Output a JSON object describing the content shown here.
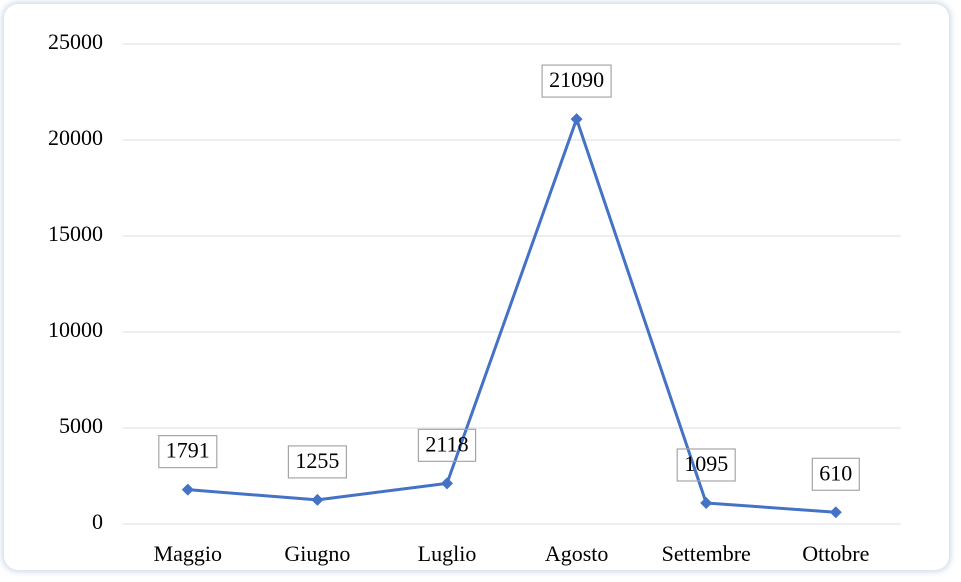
{
  "chart_data": {
    "type": "line",
    "categories": [
      "Maggio",
      "Giugno",
      "Luglio",
      "Agosto",
      "Settembre",
      "Ottobre"
    ],
    "values": [
      1791,
      1255,
      2118,
      21090,
      1095,
      610
    ],
    "color": "#4472c4",
    "ylim": [
      0,
      25000
    ],
    "yticks": [
      0,
      5000,
      10000,
      15000,
      20000,
      25000
    ],
    "grid": true,
    "data_labels": true
  }
}
